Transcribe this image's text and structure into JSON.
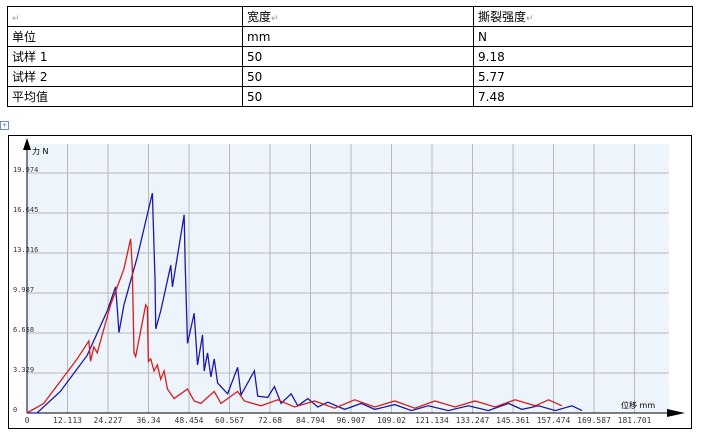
{
  "table": {
    "header": [
      "",
      "宽度",
      "撕裂强度"
    ],
    "rows": [
      [
        "单位",
        "mm",
        "N"
      ],
      [
        "试样 1",
        "50",
        "9.18"
      ],
      [
        "试样 2",
        "50",
        "5.77"
      ],
      [
        "平均值",
        "50",
        "7.48"
      ]
    ]
  },
  "chart_data": {
    "type": "line",
    "ylabel": "力 N",
    "xlabel": "位移 mm",
    "x_ticks": [
      "0",
      "12.113",
      "24.227",
      "36.34",
      "48.454",
      "60.567",
      "72.68",
      "84.794",
      "96.907",
      "109.02",
      "121.134",
      "133.247",
      "145.361",
      "157.474",
      "169.587",
      "181.701"
    ],
    "y_ticks": [
      "0",
      "3.329",
      "6.658",
      "9.987",
      "13.316",
      "16.645",
      "19.974"
    ],
    "xlim": [
      0,
      181.701
    ],
    "ylim": [
      0,
      19.974
    ],
    "grid": true,
    "colors": {
      "series1": "#1a1aa6",
      "series2": "#d41e1e",
      "background": "#eef4fb"
    },
    "series": [
      {
        "color": "#1a1aa6",
        "points": [
          [
            0,
            0
          ],
          [
            3,
            0
          ],
          [
            10,
            1.8
          ],
          [
            18,
            4.8
          ],
          [
            24,
            8.5
          ],
          [
            26.5,
            10.5
          ],
          [
            27,
            8.7
          ],
          [
            27.5,
            6.7
          ],
          [
            29,
            9
          ],
          [
            33,
            13
          ],
          [
            37.5,
            18.3
          ],
          [
            38.3,
            11
          ],
          [
            38.5,
            7
          ],
          [
            40,
            8.5
          ],
          [
            43,
            12.3
          ],
          [
            43.5,
            10.5
          ],
          [
            47,
            16.5
          ],
          [
            47.3,
            12.5
          ],
          [
            48,
            5.8
          ],
          [
            50,
            8.3
          ],
          [
            51,
            4
          ],
          [
            52.5,
            6.5
          ],
          [
            53,
            3.5
          ],
          [
            54,
            5
          ],
          [
            55,
            3
          ],
          [
            56,
            4.5
          ],
          [
            57,
            2.5
          ],
          [
            60,
            1.6
          ],
          [
            63,
            3.8
          ],
          [
            64,
            1.5
          ],
          [
            68,
            3.5
          ],
          [
            69,
            1.4
          ],
          [
            72,
            1.3
          ],
          [
            74,
            2.2
          ],
          [
            76,
            0.8
          ],
          [
            79,
            1.6
          ],
          [
            81,
            0.6
          ],
          [
            84,
            1.2
          ],
          [
            87,
            0.5
          ],
          [
            90,
            0.9
          ],
          [
            95,
            0.3
          ],
          [
            100,
            0.8
          ],
          [
            104,
            0.3
          ],
          [
            110,
            0.7
          ],
          [
            115,
            0.2
          ],
          [
            120,
            0.6
          ],
          [
            126,
            0.2
          ],
          [
            132,
            0.6
          ],
          [
            138,
            0.2
          ],
          [
            144,
            0.8
          ],
          [
            148,
            0.3
          ],
          [
            153,
            0.6
          ],
          [
            158,
            0.2
          ],
          [
            163,
            0.6
          ],
          [
            166,
            0.2
          ]
        ]
      },
      {
        "color": "#d41e1e",
        "points": [
          [
            0,
            0
          ],
          [
            5,
            0.8
          ],
          [
            15,
            4.5
          ],
          [
            18.5,
            6
          ],
          [
            19,
            4.3
          ],
          [
            20,
            5.5
          ],
          [
            21,
            5
          ],
          [
            25,
            9
          ],
          [
            29,
            12
          ],
          [
            31,
            14.5
          ],
          [
            31.5,
            12
          ],
          [
            32,
            5
          ],
          [
            32.5,
            4.7
          ],
          [
            35.5,
            9
          ],
          [
            36,
            8.8
          ],
          [
            36.3,
            4.3
          ],
          [
            37,
            4.5
          ],
          [
            38,
            3.5
          ],
          [
            39,
            4
          ],
          [
            40,
            2.8
          ],
          [
            41,
            3.5
          ],
          [
            42,
            2
          ],
          [
            44,
            1.2
          ],
          [
            48,
            2
          ],
          [
            50,
            1
          ],
          [
            52,
            0.8
          ],
          [
            56,
            1.8
          ],
          [
            58,
            0.8
          ],
          [
            63,
            1.8
          ],
          [
            65,
            1
          ],
          [
            70,
            0.6
          ],
          [
            75,
            1.1
          ],
          [
            80,
            0.5
          ],
          [
            86,
            1
          ],
          [
            92,
            0.4
          ],
          [
            98,
            1.1
          ],
          [
            104,
            0.5
          ],
          [
            110,
            1
          ],
          [
            116,
            0.4
          ],
          [
            122,
            1
          ],
          [
            128,
            0.5
          ],
          [
            134,
            1
          ],
          [
            140,
            0.5
          ],
          [
            146,
            1.1
          ],
          [
            152,
            0.6
          ],
          [
            156,
            1.1
          ],
          [
            160,
            0.6
          ]
        ]
      }
    ]
  }
}
